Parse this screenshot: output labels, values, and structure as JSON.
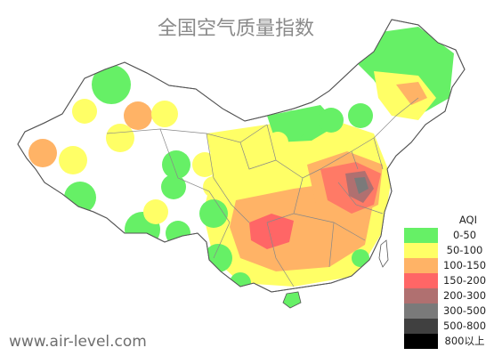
{
  "title": "全国空气质量指数",
  "watermark": "www.air-level.com",
  "legend": {
    "title": "AQI",
    "items": [
      {
        "label": "0-50",
        "color": "#66f066"
      },
      {
        "label": "50-100",
        "color": "#ffff66"
      },
      {
        "label": "100-150",
        "color": "#ffb366"
      },
      {
        "label": "150-200",
        "color": "#ff6666"
      },
      {
        "label": "200-300",
        "color": "#b07070"
      },
      {
        "label": "300-500",
        "color": "#7a7a7a"
      },
      {
        "label": "500-800",
        "color": "#404040"
      },
      {
        "label": "800以上",
        "color": "#000000"
      }
    ]
  },
  "colors": {
    "good": "#66f066",
    "moderate": "#ffff66",
    "unhealthy_sensitive": "#ffb366",
    "unhealthy": "#ff6666",
    "very_unhealthy": "#b07070",
    "hazardous": "#7a7a7a",
    "border": "#555555",
    "province_border": "#999999"
  }
}
